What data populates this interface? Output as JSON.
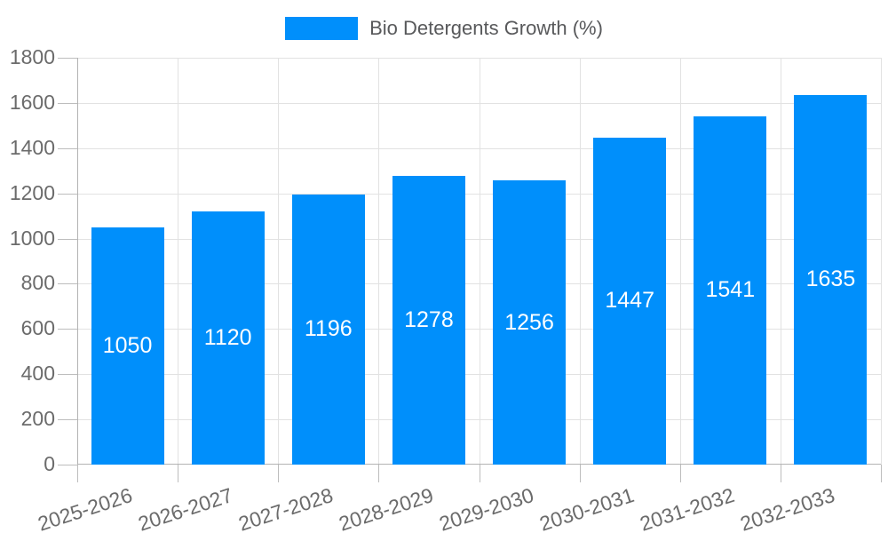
{
  "legend": {
    "label": "Bio Detergents Growth (%)",
    "position": "top"
  },
  "chart_data": {
    "type": "bar",
    "title": "",
    "xlabel": "",
    "ylabel": "",
    "categories": [
      "2025-2026",
      "2026-2027",
      "2027-2028",
      "2028-2029",
      "2029-2030",
      "2030-2031",
      "2031-2032",
      "2032-2033"
    ],
    "series": [
      {
        "name": "Bio Detergents Growth (%)",
        "values": [
          1050,
          1120,
          1196,
          1278,
          1256,
          1447,
          1541,
          1635
        ]
      }
    ],
    "value_labels_shown": true,
    "ylim": [
      0,
      1800
    ],
    "ytick_step": 200,
    "grid": true,
    "legend_position": "top"
  },
  "colors": {
    "bar": "#008FFB",
    "grid": "#e2e2e2",
    "axis": "#b3b3b3",
    "tick": "#bdbdbd",
    "axis_label": "#6b6b6b",
    "value_label": "#ffffff",
    "legend_label": "#58595b"
  }
}
